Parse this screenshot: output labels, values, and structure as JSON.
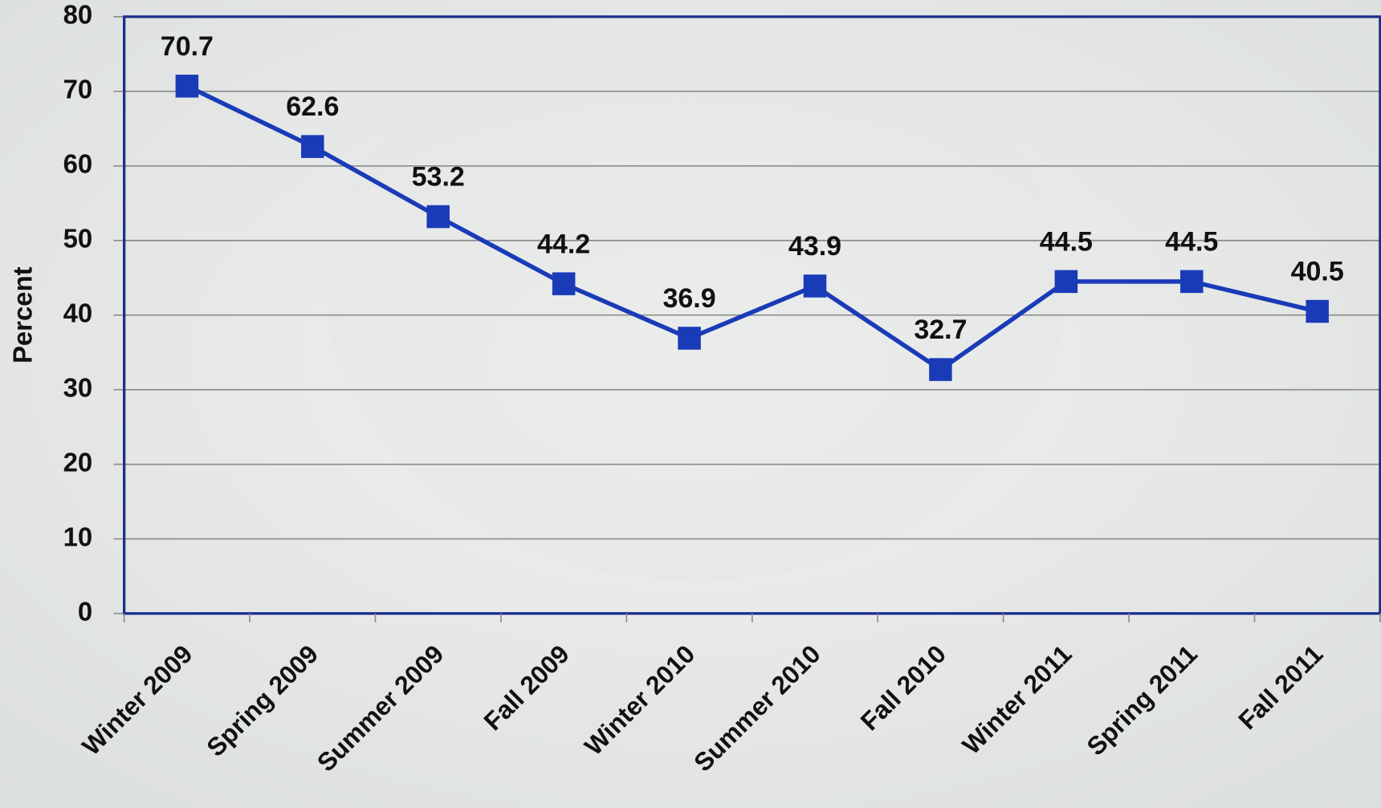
{
  "chart_data": {
    "type": "line",
    "ylabel": "Percent",
    "categories": [
      "Winter 2009",
      "Spring 2009",
      "Summer 2009",
      "Fall 2009",
      "Winter 2010",
      "Summer 2010",
      "Fall 2010",
      "Winter 2011",
      "Spring 2011",
      "Fall 2011"
    ],
    "series": [
      {
        "name": "Percent",
        "color": "#1a3bb8",
        "values": [
          70.7,
          62.6,
          53.2,
          44.2,
          36.9,
          43.9,
          32.7,
          44.5,
          44.5,
          40.5
        ]
      }
    ],
    "ylim": [
      0,
      80
    ],
    "yticks": [
      0,
      10,
      20,
      30,
      40,
      50,
      60,
      70,
      80
    ],
    "grid": true
  }
}
